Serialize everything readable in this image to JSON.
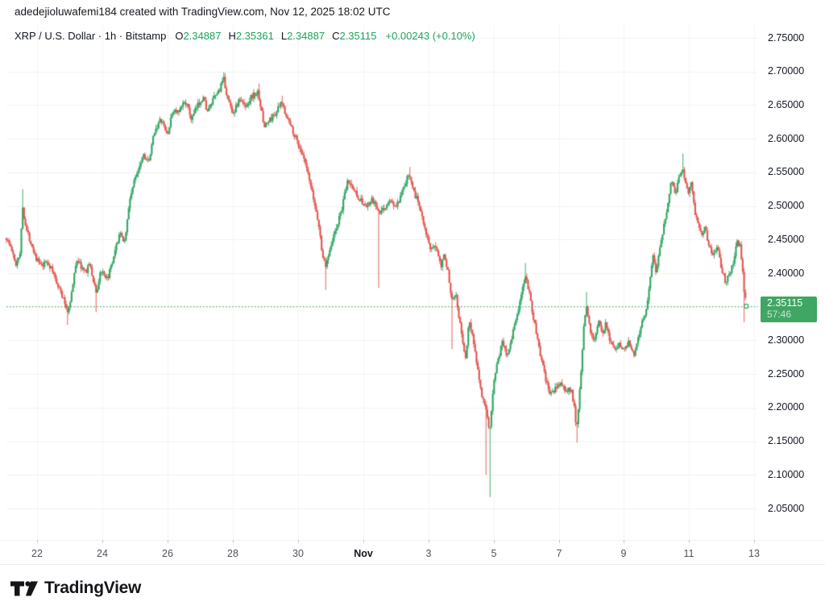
{
  "attribution": "adedejioluwafemi184 created with TradingView.com, Nov 12, 2025 18:02 UTC",
  "header": {
    "symbol_title": "XRP / U.S. Dollar · 1h · Bitstamp",
    "ohlc_items": [
      {
        "k": "O",
        "v": "2.34887"
      },
      {
        "k": "H",
        "v": "2.35361"
      },
      {
        "k": "L",
        "v": "2.34887"
      },
      {
        "k": "C",
        "v": "2.35115"
      }
    ],
    "change": "+0.00243 (+0.10%)"
  },
  "price_label": {
    "value": "2.35115",
    "countdown": "57:46"
  },
  "logo": {
    "text": "TradingView"
  },
  "colors": {
    "up": "#2ea45f",
    "down": "#e2544e",
    "accent_green": "#3fa663",
    "text_green": "#1fa35a",
    "text_dark": "#131722",
    "text_gray": "#50535e",
    "grid_h": "#f0f0ef",
    "grid_v": "#f6f5f2"
  },
  "chart_data": {
    "type": "candlestick",
    "symbol": "XRP/USD",
    "interval": "1h",
    "exchange": "Bitstamp",
    "title": "XRP / U.S. Dollar · 1h · Bitstamp",
    "last": {
      "open": 2.34887,
      "high": 2.35361,
      "low": 2.34887,
      "close": 2.35115
    },
    "change": 0.00243,
    "change_pct": 0.1,
    "ylim": [
      2.05,
      2.75
    ],
    "grid": true,
    "y_ticks": [
      "2.75000",
      "2.70000",
      "2.65000",
      "2.60000",
      "2.55000",
      "2.50000",
      "2.45000",
      "2.40000",
      "2.30000",
      "2.25000",
      "2.20000",
      "2.15000",
      "2.10000",
      "2.05000"
    ],
    "x_ticks": [
      {
        "label": "22",
        "d": 0,
        "em": false
      },
      {
        "label": "24",
        "d": 2,
        "em": false
      },
      {
        "label": "26",
        "d": 4,
        "em": false
      },
      {
        "label": "28",
        "d": 6,
        "em": false
      },
      {
        "label": "30",
        "d": 8,
        "em": false
      },
      {
        "label": "Nov",
        "d": 10,
        "em": true
      },
      {
        "label": "3",
        "d": 12,
        "em": false
      },
      {
        "label": "5",
        "d": 14,
        "em": false
      },
      {
        "label": "7",
        "d": 16,
        "em": false
      },
      {
        "label": "9",
        "d": 18,
        "em": false
      },
      {
        "label": "11",
        "d": 20,
        "em": false
      },
      {
        "label": "13",
        "d": 22,
        "em": false
      }
    ],
    "path": [
      [
        -0.94,
        2.452
      ],
      [
        -0.8,
        2.438
      ],
      [
        -0.66,
        2.412
      ],
      [
        -0.52,
        2.432
      ],
      [
        -0.44,
        2.498
      ],
      [
        -0.33,
        2.465
      ],
      [
        -0.18,
        2.445
      ],
      [
        -0.02,
        2.422
      ],
      [
        0.15,
        2.408
      ],
      [
        0.3,
        2.418
      ],
      [
        0.45,
        2.405
      ],
      [
        0.64,
        2.383
      ],
      [
        0.8,
        2.362
      ],
      [
        0.94,
        2.342
      ],
      [
        1.09,
        2.378
      ],
      [
        1.21,
        2.422
      ],
      [
        1.35,
        2.41
      ],
      [
        1.48,
        2.4
      ],
      [
        1.6,
        2.415
      ],
      [
        1.72,
        2.39
      ],
      [
        1.83,
        2.37
      ],
      [
        1.95,
        2.405
      ],
      [
        2.12,
        2.388
      ],
      [
        2.32,
        2.415
      ],
      [
        2.52,
        2.458
      ],
      [
        2.69,
        2.448
      ],
      [
        2.86,
        2.515
      ],
      [
        3.06,
        2.55
      ],
      [
        3.26,
        2.578
      ],
      [
        3.43,
        2.563
      ],
      [
        3.6,
        2.612
      ],
      [
        3.8,
        2.628
      ],
      [
        4.0,
        2.605
      ],
      [
        4.17,
        2.643
      ],
      [
        4.35,
        2.638
      ],
      [
        4.54,
        2.658
      ],
      [
        4.74,
        2.628
      ],
      [
        4.91,
        2.648
      ],
      [
        5.09,
        2.663
      ],
      [
        5.23,
        2.64
      ],
      [
        5.41,
        2.658
      ],
      [
        5.58,
        2.672
      ],
      [
        5.73,
        2.688
      ],
      [
        5.85,
        2.658
      ],
      [
        6.02,
        2.638
      ],
      [
        6.2,
        2.658
      ],
      [
        6.39,
        2.648
      ],
      [
        6.57,
        2.663
      ],
      [
        6.79,
        2.668
      ],
      [
        6.96,
        2.618
      ],
      [
        7.14,
        2.628
      ],
      [
        7.31,
        2.638
      ],
      [
        7.51,
        2.653
      ],
      [
        7.7,
        2.628
      ],
      [
        7.88,
        2.608
      ],
      [
        8.05,
        2.588
      ],
      [
        8.25,
        2.558
      ],
      [
        8.44,
        2.518
      ],
      [
        8.62,
        2.478
      ],
      [
        8.74,
        2.432
      ],
      [
        8.84,
        2.408
      ],
      [
        8.99,
        2.44
      ],
      [
        9.19,
        2.468
      ],
      [
        9.36,
        2.498
      ],
      [
        9.53,
        2.538
      ],
      [
        9.73,
        2.523
      ],
      [
        9.93,
        2.508
      ],
      [
        10.1,
        2.498
      ],
      [
        10.27,
        2.508
      ],
      [
        10.42,
        2.498
      ],
      [
        10.49,
        2.487
      ],
      [
        10.67,
        2.498
      ],
      [
        10.84,
        2.508
      ],
      [
        11.01,
        2.498
      ],
      [
        11.16,
        2.513
      ],
      [
        11.33,
        2.538
      ],
      [
        11.43,
        2.548
      ],
      [
        11.58,
        2.518
      ],
      [
        11.75,
        2.498
      ],
      [
        11.9,
        2.468
      ],
      [
        12.07,
        2.432
      ],
      [
        12.25,
        2.44
      ],
      [
        12.4,
        2.412
      ],
      [
        12.49,
        2.432
      ],
      [
        12.64,
        2.39
      ],
      [
        12.72,
        2.362
      ],
      [
        12.84,
        2.372
      ],
      [
        12.99,
        2.318
      ],
      [
        13.14,
        2.272
      ],
      [
        13.26,
        2.332
      ],
      [
        13.38,
        2.3
      ],
      [
        13.51,
        2.26
      ],
      [
        13.63,
        2.222
      ],
      [
        13.75,
        2.198
      ],
      [
        13.88,
        2.162
      ],
      [
        14.0,
        2.238
      ],
      [
        14.12,
        2.268
      ],
      [
        14.27,
        2.298
      ],
      [
        14.42,
        2.278
      ],
      [
        14.57,
        2.308
      ],
      [
        14.72,
        2.338
      ],
      [
        14.86,
        2.368
      ],
      [
        14.99,
        2.398
      ],
      [
        15.11,
        2.368
      ],
      [
        15.23,
        2.332
      ],
      [
        15.36,
        2.298
      ],
      [
        15.48,
        2.268
      ],
      [
        15.6,
        2.242
      ],
      [
        15.73,
        2.218
      ],
      [
        15.9,
        2.228
      ],
      [
        16.07,
        2.238
      ],
      [
        16.22,
        2.222
      ],
      [
        16.37,
        2.228
      ],
      [
        16.47,
        2.202
      ],
      [
        16.54,
        2.168
      ],
      [
        16.64,
        2.222
      ],
      [
        16.74,
        2.3
      ],
      [
        16.84,
        2.358
      ],
      [
        16.96,
        2.318
      ],
      [
        17.08,
        2.298
      ],
      [
        17.21,
        2.328
      ],
      [
        17.33,
        2.308
      ],
      [
        17.45,
        2.328
      ],
      [
        17.58,
        2.298
      ],
      [
        17.73,
        2.288
      ],
      [
        17.87,
        2.293
      ],
      [
        18.02,
        2.288
      ],
      [
        18.17,
        2.298
      ],
      [
        18.32,
        2.278
      ],
      [
        18.44,
        2.308
      ],
      [
        18.57,
        2.328
      ],
      [
        18.69,
        2.348
      ],
      [
        18.79,
        2.388
      ],
      [
        18.89,
        2.428
      ],
      [
        18.99,
        2.402
      ],
      [
        19.09,
        2.438
      ],
      [
        19.21,
        2.468
      ],
      [
        19.33,
        2.498
      ],
      [
        19.46,
        2.538
      ],
      [
        19.58,
        2.518
      ],
      [
        19.7,
        2.548
      ],
      [
        19.83,
        2.552
      ],
      [
        19.95,
        2.518
      ],
      [
        20.05,
        2.538
      ],
      [
        20.15,
        2.498
      ],
      [
        20.25,
        2.478
      ],
      [
        20.37,
        2.458
      ],
      [
        20.49,
        2.468
      ],
      [
        20.62,
        2.438
      ],
      [
        20.74,
        2.428
      ],
      [
        20.86,
        2.438
      ],
      [
        20.99,
        2.408
      ],
      [
        21.11,
        2.388
      ],
      [
        21.24,
        2.398
      ],
      [
        21.36,
        2.418
      ],
      [
        21.48,
        2.448
      ],
      [
        21.58,
        2.438
      ],
      [
        21.68,
        2.378
      ],
      [
        21.75,
        2.351
      ]
    ],
    "spikes_high": [
      [
        -0.44,
        2.525
      ],
      [
        5.73,
        2.699
      ],
      [
        6.79,
        2.682
      ],
      [
        7.51,
        2.664
      ],
      [
        11.43,
        2.558
      ],
      [
        14.99,
        2.415
      ],
      [
        16.84,
        2.372
      ],
      [
        19.83,
        2.578
      ]
    ],
    "spikes_low": [
      [
        0.94,
        2.323
      ],
      [
        1.83,
        2.342
      ],
      [
        8.84,
        2.375
      ],
      [
        10.49,
        2.378
      ],
      [
        12.72,
        2.287
      ],
      [
        13.75,
        2.1
      ],
      [
        13.88,
        2.067
      ],
      [
        16.54,
        2.148
      ],
      [
        21.7,
        2.327
      ]
    ]
  }
}
